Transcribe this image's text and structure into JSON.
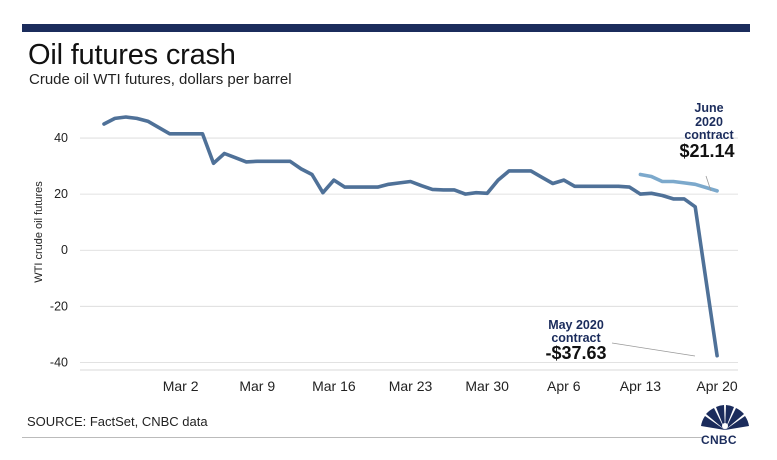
{
  "header": {
    "title": "Oil futures crash",
    "subtitle": "Crude oil WTI futures, dollars per barrel"
  },
  "footer": {
    "source": "SOURCE: FactSet, CNBC data",
    "logo_text": "CNBC"
  },
  "colors": {
    "brand_bar": "#1b2c5c",
    "may_line": "#4f7198",
    "june_line": "#7ca9cc",
    "grid": "#d8d8d8"
  },
  "chart_data": {
    "type": "line",
    "title": "Oil futures crash",
    "subtitle": "Crude oil WTI futures, dollars per barrel",
    "ylabel": "WTI crude oil futures",
    "xlabel": "",
    "ylim": [
      -42,
      50
    ],
    "xlim": [
      "2020-02-24",
      "2020-04-21"
    ],
    "yticks": [
      40,
      20,
      0,
      -20,
      -40
    ],
    "ytick_labels": [
      "40",
      "20",
      "0",
      "-20",
      "-40"
    ],
    "xticks": [
      "2020-03-02",
      "2020-03-09",
      "2020-03-16",
      "2020-03-23",
      "2020-03-30",
      "2020-04-06",
      "2020-04-13",
      "2020-04-20"
    ],
    "xtick_labels": [
      "Mar 2",
      "Mar 9",
      "Mar 16",
      "Mar 23",
      "Mar 30",
      "Apr 6",
      "Apr 13",
      "Apr 20"
    ],
    "grid": true,
    "series": [
      {
        "name": "May 2020 contract",
        "color": "#4f7198",
        "points": [
          [
            "2020-02-24",
            45.0
          ],
          [
            "2020-02-25",
            47.0
          ],
          [
            "2020-02-26",
            47.5
          ],
          [
            "2020-02-27",
            47.0
          ],
          [
            "2020-02-28",
            46.0
          ],
          [
            "2020-03-01",
            41.5
          ],
          [
            "2020-03-02",
            41.5
          ],
          [
            "2020-03-04",
            41.5
          ],
          [
            "2020-03-05",
            31.0
          ],
          [
            "2020-03-06",
            34.5
          ],
          [
            "2020-03-07",
            33.0
          ],
          [
            "2020-03-08",
            31.5
          ],
          [
            "2020-03-09",
            31.7
          ],
          [
            "2020-03-10",
            31.7
          ],
          [
            "2020-03-11",
            31.7
          ],
          [
            "2020-03-12",
            31.7
          ],
          [
            "2020-03-13",
            29.0
          ],
          [
            "2020-03-14",
            27.0
          ],
          [
            "2020-03-15",
            20.5
          ],
          [
            "2020-03-16",
            25.0
          ],
          [
            "2020-03-17",
            22.5
          ],
          [
            "2020-03-19",
            22.5
          ],
          [
            "2020-03-20",
            22.5
          ],
          [
            "2020-03-21",
            23.5
          ],
          [
            "2020-03-22",
            24.0
          ],
          [
            "2020-03-23",
            24.5
          ],
          [
            "2020-03-24",
            23.0
          ],
          [
            "2020-03-25",
            21.7
          ],
          [
            "2020-03-26",
            21.5
          ],
          [
            "2020-03-27",
            21.5
          ],
          [
            "2020-03-28",
            20.0
          ],
          [
            "2020-03-29",
            20.5
          ],
          [
            "2020-03-30",
            20.3
          ],
          [
            "2020-03-31",
            25.0
          ],
          [
            "2020-04-01",
            28.3
          ],
          [
            "2020-04-03",
            28.3
          ],
          [
            "2020-04-04",
            26.0
          ],
          [
            "2020-04-05",
            23.8
          ],
          [
            "2020-04-06",
            25.0
          ],
          [
            "2020-04-07",
            22.8
          ],
          [
            "2020-04-08",
            22.8
          ],
          [
            "2020-04-10",
            22.8
          ],
          [
            "2020-04-11",
            22.8
          ],
          [
            "2020-04-12",
            22.5
          ],
          [
            "2020-04-13",
            20.0
          ],
          [
            "2020-04-14",
            20.3
          ],
          [
            "2020-04-15",
            19.5
          ],
          [
            "2020-04-16",
            18.3
          ],
          [
            "2020-04-17",
            18.3
          ],
          [
            "2020-04-18",
            15.5
          ],
          [
            "2020-04-20",
            -37.63
          ]
        ]
      },
      {
        "name": "June 2020 contract",
        "color": "#7ca9cc",
        "points": [
          [
            "2020-04-13",
            27.0
          ],
          [
            "2020-04-14",
            26.3
          ],
          [
            "2020-04-15",
            24.5
          ],
          [
            "2020-04-16",
            24.5
          ],
          [
            "2020-04-17",
            24.0
          ],
          [
            "2020-04-18",
            23.5
          ],
          [
            "2020-04-20",
            21.14
          ]
        ]
      }
    ],
    "annotations": [
      {
        "series": "June 2020 contract",
        "lines": [
          "June",
          "2020",
          "contract"
        ],
        "value_label": "$21.14"
      },
      {
        "series": "May 2020 contract",
        "lines": [
          "May 2020",
          "contract"
        ],
        "value_label": "-$37.63"
      }
    ]
  }
}
